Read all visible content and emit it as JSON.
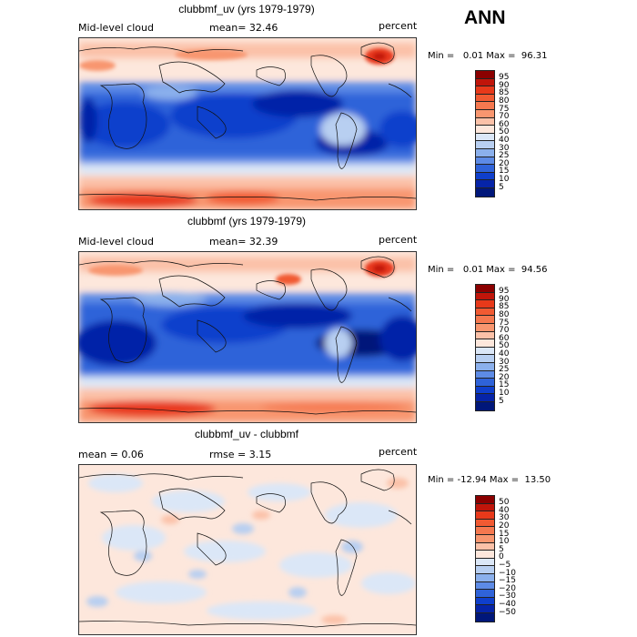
{
  "season": "ANN",
  "panels": [
    {
      "id": "test",
      "title": "clubbmf_uv (yrs 1979-1979)",
      "left_label": "Mid-level cloud",
      "center_label": "mean=  32.46",
      "units": "percent",
      "minmax": "Min =   0.01 Max =  96.31",
      "colorbar": {
        "levels": [
          "95",
          "90",
          "85",
          "80",
          "75",
          "70",
          "60",
          "50",
          "40",
          "30",
          "25",
          "20",
          "15",
          "10",
          "5"
        ],
        "colors": [
          "#8b0000",
          "#c0150a",
          "#e8391a",
          "#f15a32",
          "#f5784f",
          "#f8966f",
          "#fbc1a8",
          "#fde7dc",
          "#dbe7f7",
          "#b8cff1",
          "#8bb0ec",
          "#5d8be6",
          "#2f63d9",
          "#0f3fcc",
          "#0624a8",
          "#00177a"
        ]
      }
    },
    {
      "id": "ref",
      "title": "clubbmf (yrs 1979-1979)",
      "left_label": "Mid-level cloud",
      "center_label": "mean=  32.39",
      "units": "percent",
      "minmax": "Min =   0.01 Max =  94.56",
      "colorbar": {
        "levels": [
          "95",
          "90",
          "85",
          "80",
          "75",
          "70",
          "60",
          "50",
          "40",
          "30",
          "25",
          "20",
          "15",
          "10",
          "5"
        ],
        "colors": [
          "#8b0000",
          "#c0150a",
          "#e8391a",
          "#f15a32",
          "#f5784f",
          "#f8966f",
          "#fbc1a8",
          "#fde7dc",
          "#dbe7f7",
          "#b8cff1",
          "#8bb0ec",
          "#5d8be6",
          "#2f63d9",
          "#0f3fcc",
          "#0624a8",
          "#00177a"
        ]
      }
    },
    {
      "id": "diff",
      "title": "clubbmf_uv - clubbmf",
      "left_label": "mean =   0.06",
      "center_label": "rmse =   3.15",
      "units": "percent",
      "minmax": "Min = -12.94 Max =  13.50",
      "colorbar": {
        "levels": [
          "50",
          "40",
          "30",
          "20",
          "15",
          "10",
          "5",
          "0",
          "−5",
          "−10",
          "−15",
          "−20",
          "−30",
          "−40",
          "−50"
        ],
        "colors": [
          "#8b0000",
          "#c0150a",
          "#e8391a",
          "#f15a32",
          "#f5784f",
          "#f8966f",
          "#fbc1a8",
          "#fde7dc",
          "#dbe7f7",
          "#b8cff1",
          "#8bb0ec",
          "#5d8be6",
          "#2f63d9",
          "#0f3fcc",
          "#0624a8",
          "#00177a"
        ]
      }
    }
  ]
}
